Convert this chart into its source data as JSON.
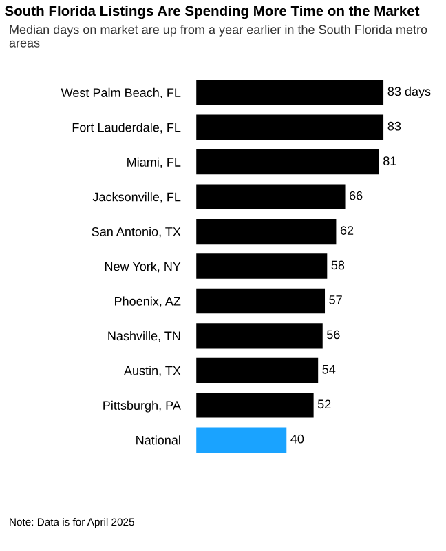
{
  "chart_data": {
    "type": "bar",
    "orientation": "horizontal",
    "title": "South Florida Listings Are Spending More Time on the Market",
    "subtitle": "Median days on market are up from a year earlier in the South Florida metro areas",
    "categories": [
      "West Palm Beach, FL",
      "Fort Lauderdale, FL",
      "Miami, FL",
      "Jacksonville, FL",
      "San Antonio, TX",
      "New York, NY",
      "Phoenix, AZ",
      "Nashville, TN",
      "Austin, TX",
      "Pittsburgh, PA",
      "National"
    ],
    "values": [
      83,
      83,
      81,
      66,
      62,
      58,
      57,
      56,
      54,
      52,
      40
    ],
    "colors": [
      "#000000",
      "#000000",
      "#000000",
      "#000000",
      "#000000",
      "#000000",
      "#000000",
      "#000000",
      "#000000",
      "#000000",
      "#1aa3ff"
    ],
    "value_labels": [
      "83 days",
      "83",
      "81",
      "66",
      "62",
      "58",
      "57",
      "56",
      "54",
      "52",
      "40"
    ],
    "annotations": [
      "Note: Data is for April 2025"
    ]
  }
}
